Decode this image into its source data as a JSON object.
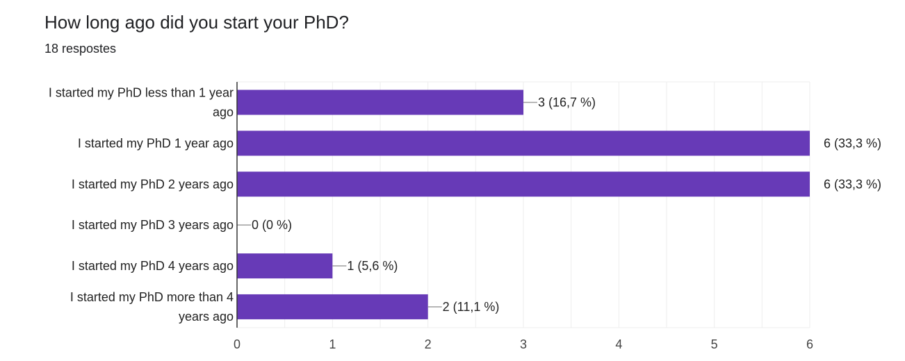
{
  "header": {
    "title": "How long ago did you start your PhD?",
    "responses": "18 respostes"
  },
  "chart_data": {
    "type": "bar",
    "orientation": "horizontal",
    "categories": [
      "I started my PhD less than 1 year ago",
      "I started my PhD 1 year ago",
      "I started my PhD 2 years ago",
      "I started my PhD 3 years ago",
      "I started my PhD 4 years ago",
      "I started my PhD more than 4 years ago"
    ],
    "category_label_lines": [
      [
        "I started my PhD less than 1 year",
        "ago"
      ],
      [
        "I started my PhD 1 year ago"
      ],
      [
        "I started my PhD 2 years ago"
      ],
      [
        "I started my PhD 3 years ago"
      ],
      [
        "I started my PhD 4 years ago"
      ],
      [
        "I started my PhD more than 4",
        "years ago"
      ]
    ],
    "values": [
      3,
      6,
      6,
      0,
      1,
      2
    ],
    "data_labels": [
      "3 (16,7 %)",
      "6 (33,3 %)",
      "6 (33,3 %)",
      "0 (0 %)",
      "1 (5,6 %)",
      "2 (11,1 %)"
    ],
    "xlim": [
      0,
      6
    ],
    "xticks": [
      0,
      1,
      2,
      3,
      4,
      5,
      6
    ],
    "grid": true,
    "bar_color": "#673ab7",
    "grid_color": "#eeeeee",
    "axis_color": "#333333",
    "leader_color": "#9e9e9e"
  }
}
